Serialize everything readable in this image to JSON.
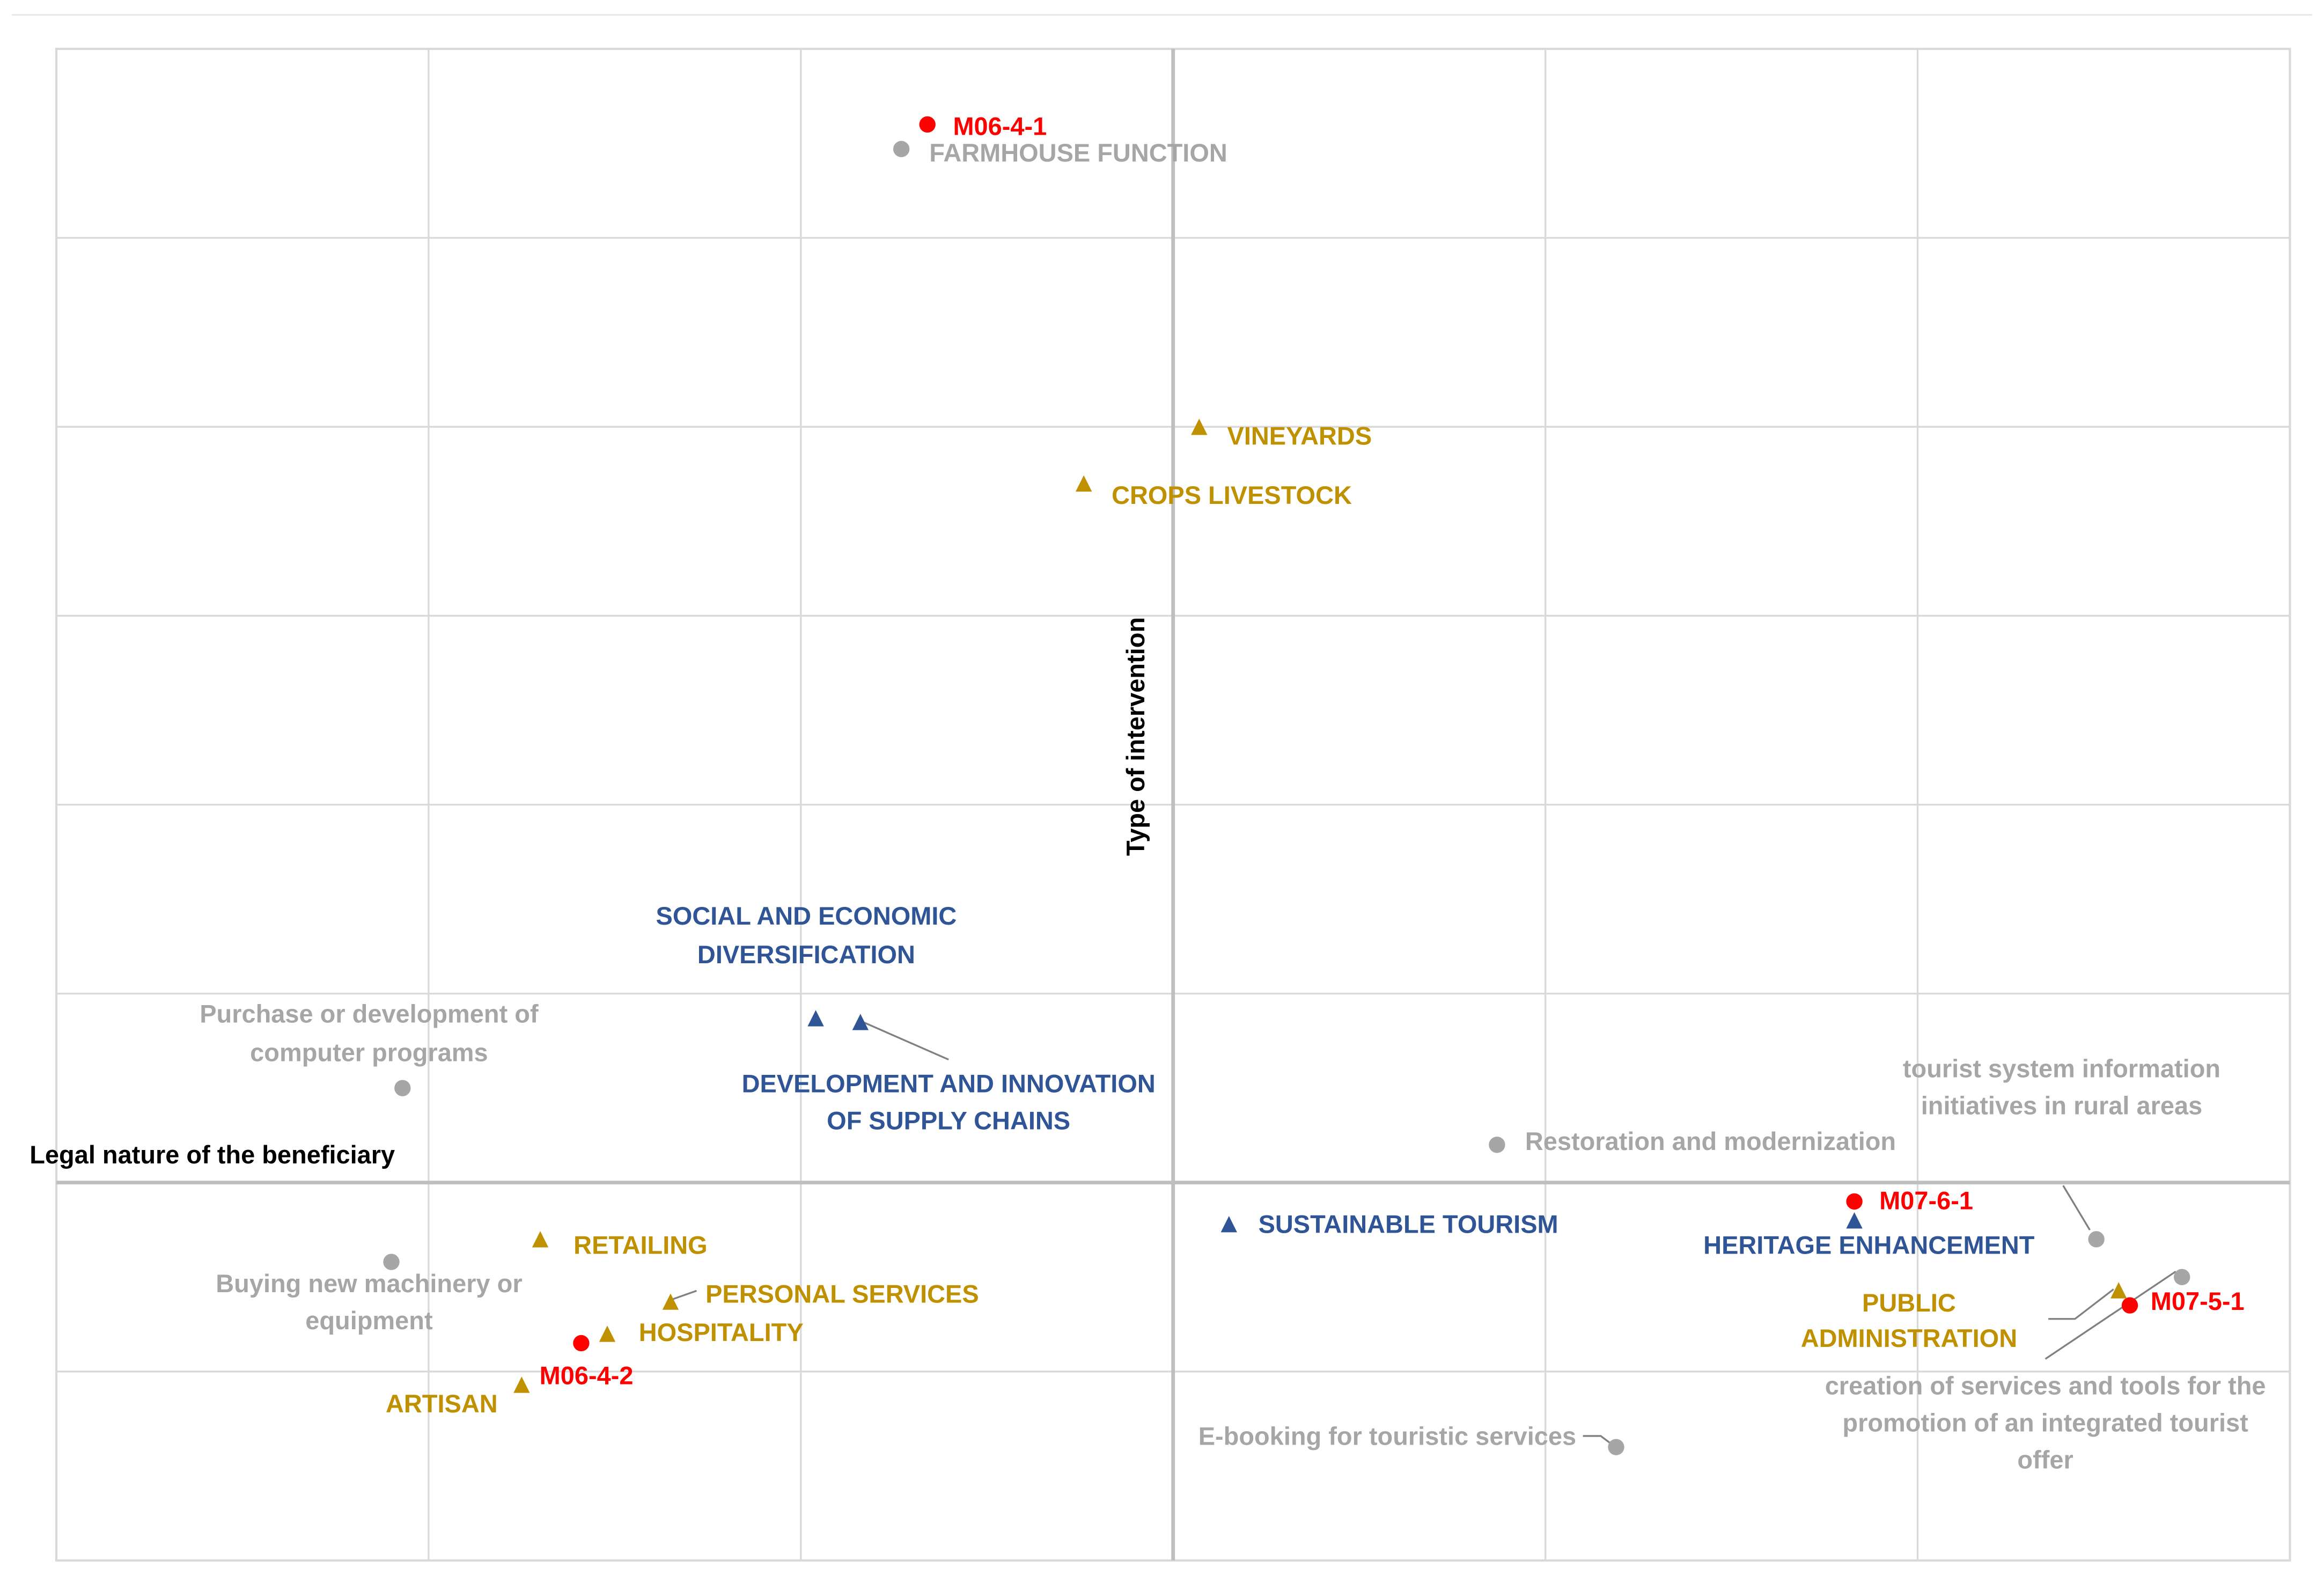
{
  "colors": {
    "red": "#ff0000",
    "gray": "#a6a6a6",
    "gold": "#bf9000",
    "blue": "#2f5597",
    "axis": "#bfbfbf",
    "grid": "#d9d9d9",
    "axis_title": "#000000"
  },
  "chart_data": {
    "type": "scatter",
    "title": "",
    "xlabel": "Legal nature of the beneficiary",
    "ylabel": "Type of intervention",
    "xlim": [
      -3,
      3
    ],
    "ylim": [
      -2,
      6
    ],
    "grid": true,
    "legend": "none",
    "series": [
      {
        "marker": "circle",
        "color": "#ff0000",
        "points": [
          {
            "label": "M06-4-1",
            "x": -0.66,
            "y": 5.6
          },
          {
            "label": "M06-4-2",
            "x": -1.59,
            "y": -0.85
          },
          {
            "label": "M07-6-1",
            "x": 1.83,
            "y": -0.1
          },
          {
            "label": "M07-5-1",
            "x": 2.57,
            "y": -0.65
          }
        ]
      },
      {
        "marker": "circle",
        "color": "#a6a6a6",
        "points": [
          {
            "label": "FARMHOUSE FUNCTION",
            "x": -0.73,
            "y": 5.47
          },
          {
            "label": "Purchase or development of computer programs",
            "x": -2.07,
            "y": 0.5
          },
          {
            "label": "Buying new machinery or equipment",
            "x": -2.1,
            "y": -0.42
          },
          {
            "label": "Restoration and modernization",
            "x": 0.87,
            "y": 0.2
          },
          {
            "label": "E-booking for touristic services",
            "x": 1.19,
            "y": -1.4
          },
          {
            "label": "tourist system information initiatives in rural areas",
            "x": 2.48,
            "y": -0.3
          },
          {
            "label": "creation of services and tools for the promotion of an integrated tourist offer",
            "x": 2.71,
            "y": -0.5
          }
        ]
      },
      {
        "marker": "triangle",
        "color": "#bf9000",
        "points": [
          {
            "label": "VINEYARDS",
            "x": 0.07,
            "y": 4.0
          },
          {
            "label": "CROPS LIVESTOCK",
            "x": -0.24,
            "y": 3.7
          },
          {
            "label": "RETAILING",
            "x": -1.7,
            "y": -0.3
          },
          {
            "label": "PERSONAL SERVICES",
            "x": -1.35,
            "y": -0.63
          },
          {
            "label": "HOSPITALITY",
            "x": -1.52,
            "y": -0.8
          },
          {
            "label": "ARTISAN",
            "x": -1.75,
            "y": -1.07
          },
          {
            "label": "PUBLIC ADMINISTRATION",
            "x": 2.54,
            "y": -0.57
          }
        ]
      },
      {
        "marker": "triangle",
        "color": "#2f5597",
        "points": [
          {
            "label": "SOCIAL AND ECONOMIC DIVERSIFICATION",
            "x": -0.96,
            "y": 0.87
          },
          {
            "label": "DEVELOPMENT AND INNOVATION OF SUPPLY CHAINS",
            "x": -0.84,
            "y": 0.85
          },
          {
            "label": "SUSTAINABLE TOURISM",
            "x": 0.15,
            "y": -0.22
          },
          {
            "label": "HERITAGE ENHANCEMENT",
            "x": 1.83,
            "y": -0.2
          }
        ]
      }
    ]
  }
}
